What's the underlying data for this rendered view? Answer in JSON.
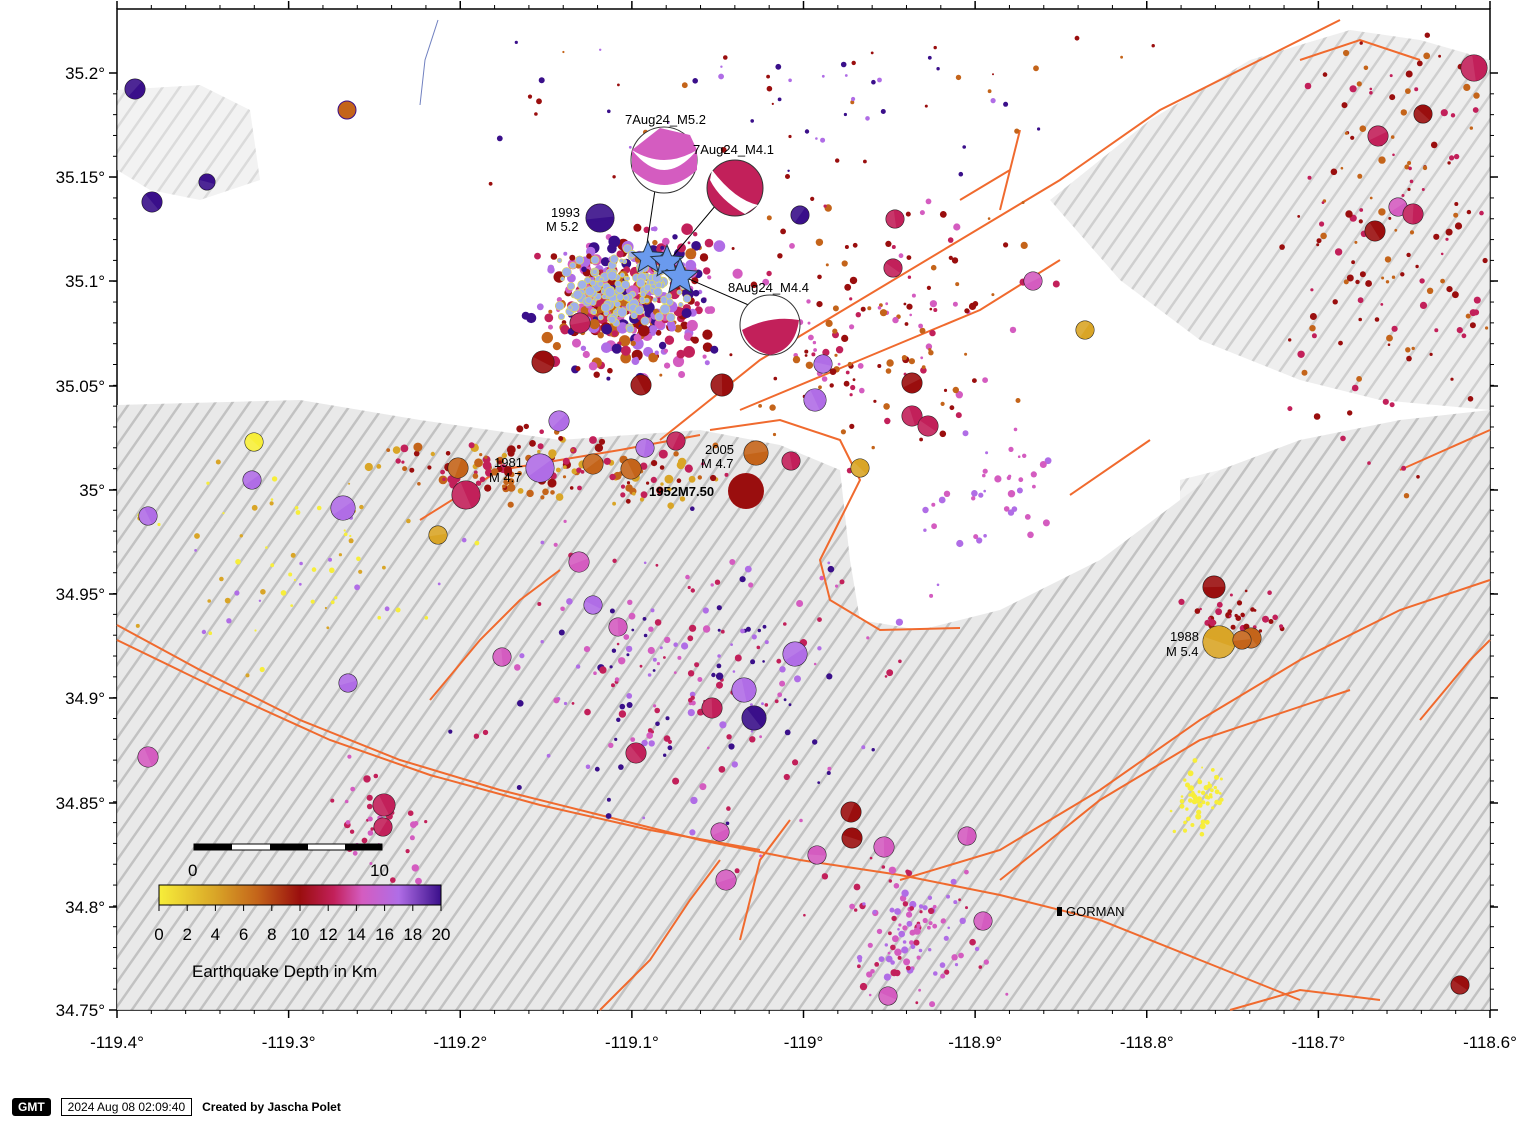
{
  "map": {
    "lat_ticks": [
      "35.2°",
      "35.15°",
      "35.1°",
      "35.05°",
      "35°",
      "34.95°",
      "34.9°",
      "34.85°",
      "34.8°",
      "34.75°"
    ],
    "lon_ticks": [
      "-119.4°",
      "-119.3°",
      "-119.2°",
      "-119.1°",
      "-119°",
      "-118.9°",
      "-118.8°",
      "-118.7°",
      "-118.6°"
    ],
    "place_label": "GORMAN",
    "annotations": {
      "m52": "7Aug24_M5.2",
      "m41": "7Aug24_M4.1",
      "m44": "8Aug24_M4.4",
      "e1993a": "1993",
      "e1993b": "M 5.2",
      "e1981a": "1981",
      "e1981b": "M 4.7",
      "e2005a": "2005",
      "e2005b": "M 4.7",
      "e1952": "1952M7.50",
      "e1988a": "1988",
      "e1988b": "M 5.4"
    },
    "scalebar": {
      "start": "0",
      "end": "10"
    },
    "colorbar": {
      "ticks": [
        "0",
        "2",
        "4",
        "6",
        "8",
        "10",
        "12",
        "14",
        "16",
        "18",
        "20"
      ],
      "label": "Earthquake Depth in Km",
      "colors": [
        "#f7ee3a",
        "#d9a527",
        "#c4641a",
        "#9a0e0e",
        "#c2205a",
        "#d45cc0",
        "#b06de6",
        "#3a0f8a"
      ]
    },
    "fault_color": "#f06a2e",
    "star_color": "#6a9aee"
  },
  "footer": {
    "logo": "GMT",
    "timestamp": "2024 Aug 08 02:09:40",
    "credit": "Created by Jascha Polet"
  }
}
